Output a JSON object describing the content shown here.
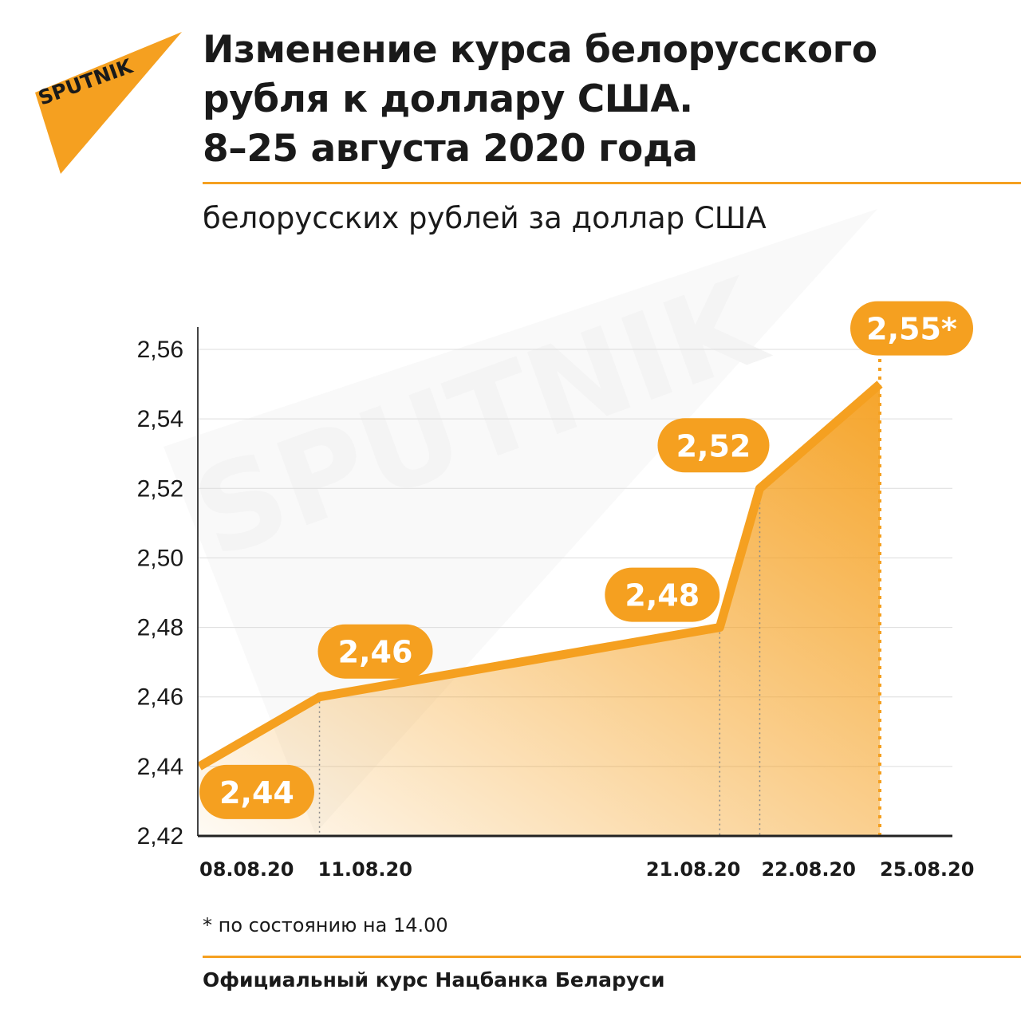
{
  "brand": {
    "logo_text": "SPUTNIK",
    "watermark_text": "SPUTNIK",
    "accent_color": "#f5a020"
  },
  "header": {
    "title_lines": [
      "Изменение курса белорусского",
      "рубля к доллару США.",
      "8–25 августа 2020 года"
    ]
  },
  "subtitle": "белорусских рублей за доллар США",
  "chart_data": {
    "type": "area",
    "x": [
      "08.08.20",
      "11.08.20",
      "21.08.20",
      "22.08.20",
      "25.08.20"
    ],
    "values": [
      2.44,
      2.46,
      2.48,
      2.52,
      2.55
    ],
    "data_labels": [
      "2,44",
      "2,46",
      "2,48",
      "2,52",
      "2,55*"
    ],
    "y_ticks": [
      2.42,
      2.44,
      2.46,
      2.48,
      2.5,
      2.52,
      2.54,
      2.56
    ],
    "y_tick_labels": [
      "2,42",
      "2,44",
      "2,46",
      "2,48",
      "2,50",
      "2,52",
      "2,54",
      "2,56"
    ],
    "ylim": [
      2.42,
      2.56
    ],
    "grid": true,
    "color": "#f5a020"
  },
  "footnote": "* по состоянию на 14.00",
  "source": "Официальный курс Нацбанка Беларуси"
}
